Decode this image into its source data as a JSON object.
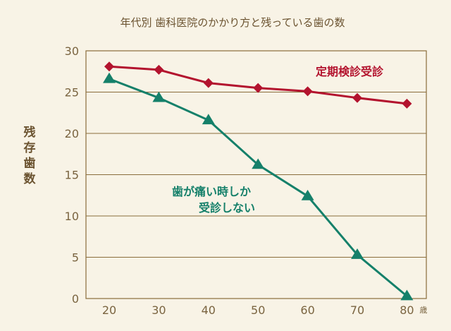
{
  "chart_data": {
    "type": "line",
    "title": "年代別 歯科医院のかかり方と残っている歯の数",
    "ylabel": "残存歯数",
    "x_unit": "歳",
    "x": [
      20,
      30,
      40,
      50,
      60,
      70,
      80
    ],
    "y_ticks": [
      0,
      5,
      10,
      15,
      20,
      25,
      30
    ],
    "ylim": [
      0,
      30
    ],
    "grid": true,
    "series": [
      {
        "name": "定期検診受診",
        "color": "#b3132e",
        "marker": "diamond",
        "values": [
          28.1,
          27.7,
          26.1,
          25.5,
          25.1,
          24.3,
          23.6
        ]
      },
      {
        "name_lines": [
          "歯が痛い時しか",
          "受診しない"
        ],
        "color": "#15806a",
        "marker": "triangle",
        "values": [
          26.6,
          24.3,
          21.6,
          16.2,
          12.4,
          5.3,
          0.3
        ]
      }
    ]
  }
}
